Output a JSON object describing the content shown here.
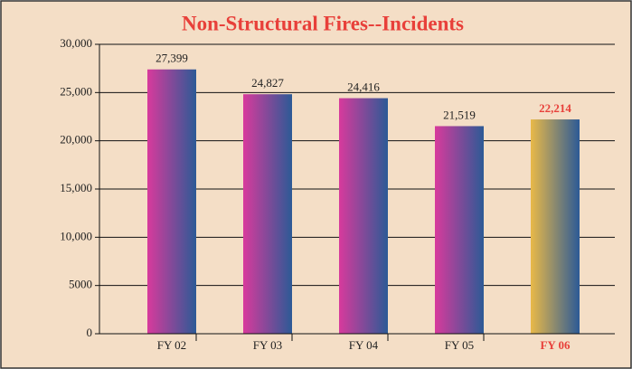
{
  "chart_data": {
    "type": "bar",
    "title": "Non-Structural Fires--Incidents",
    "categories": [
      "FY 02",
      "FY 03",
      "FY 04",
      "FY 05",
      "FY 06"
    ],
    "values": [
      27399,
      24827,
      24416,
      21519,
      22214
    ],
    "value_labels": [
      "27,399",
      "24,827",
      "24,416",
      "21,519",
      "22,214"
    ],
    "colors": [
      "#d83a9c",
      "#d83a9c",
      "#d83a9c",
      "#d83a9c",
      "#e9b948"
    ],
    "gradient_end": "#2c5a96",
    "label_colors": [
      "#222222",
      "#222222",
      "#222222",
      "#222222",
      "#e8403a"
    ],
    "ylim": [
      0,
      30000
    ],
    "yticks": [
      0,
      5000,
      {
        "value": 10000,
        "label": "10,000"
      },
      {
        "value": 15000,
        "label": "15,000"
      },
      {
        "value": 20000,
        "label": "20,000"
      },
      {
        "value": 25000,
        "label": "25,000"
      },
      {
        "value": 30000,
        "label": "30,000"
      }
    ],
    "grid": true
  }
}
